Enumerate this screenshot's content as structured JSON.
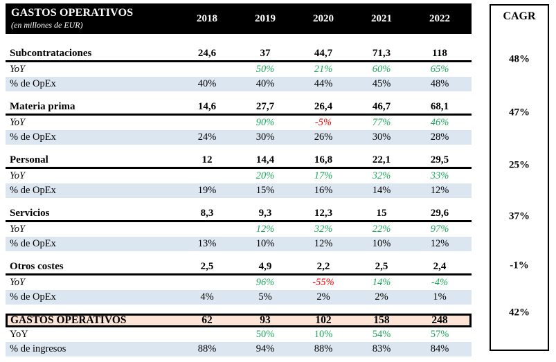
{
  "header": {
    "title": "GASTOS OPERATIVOS",
    "subtitle": "(en millones de EUR)",
    "years": [
      "2018",
      "2019",
      "2020",
      "2021",
      "2022"
    ]
  },
  "sections": [
    {
      "name": "Subcontrataciones",
      "values": [
        "24,6",
        "37",
        "44,7",
        "71,3",
        "118"
      ],
      "yoy_label": "YoY",
      "yoy": [
        "",
        "50%",
        "21%",
        "60%",
        "65%"
      ],
      "yoy_colors": [
        "",
        "green",
        "green",
        "green",
        "green"
      ],
      "opex_label": "% de OpEx",
      "opex": [
        "40%",
        "40%",
        "44%",
        "45%",
        "48%"
      ]
    },
    {
      "name": "Materia prima",
      "values": [
        "14,6",
        "27,7",
        "26,4",
        "46,7",
        "68,1"
      ],
      "yoy_label": "YoY",
      "yoy": [
        "",
        "90%",
        "-5%",
        "77%",
        "46%"
      ],
      "yoy_colors": [
        "",
        "green",
        "red",
        "green",
        "green"
      ],
      "opex_label": "% de OpEx",
      "opex": [
        "24%",
        "30%",
        "26%",
        "30%",
        "28%"
      ]
    },
    {
      "name": "Personal",
      "values": [
        "12",
        "14,4",
        "16,8",
        "22,1",
        "29,5"
      ],
      "yoy_label": "YoY",
      "yoy": [
        "",
        "20%",
        "17%",
        "32%",
        "33%"
      ],
      "yoy_colors": [
        "",
        "green",
        "green",
        "green",
        "green"
      ],
      "opex_label": "% de OpEx",
      "opex": [
        "19%",
        "15%",
        "16%",
        "14%",
        "12%"
      ]
    },
    {
      "name": "Servicios",
      "values": [
        "8,3",
        "9,3",
        "12,3",
        "15",
        "29,6"
      ],
      "yoy_label": "YoY",
      "yoy": [
        "",
        "12%",
        "32%",
        "22%",
        "97%"
      ],
      "yoy_colors": [
        "",
        "green",
        "green",
        "green",
        "green"
      ],
      "opex_label": "% de OpEx",
      "opex": [
        "13%",
        "10%",
        "12%",
        "10%",
        "12%"
      ]
    },
    {
      "name": "Otros costes",
      "values": [
        "2,5",
        "4,9",
        "2,2",
        "2,5",
        "2,4"
      ],
      "yoy_label": "YoY",
      "yoy": [
        "",
        "96%",
        "-55%",
        "14%",
        "-4%"
      ],
      "yoy_colors": [
        "",
        "green",
        "red",
        "green",
        "green"
      ],
      "opex_label": "% de OpEx",
      "opex": [
        "4%",
        "5%",
        "2%",
        "2%",
        "1%"
      ]
    }
  ],
  "total": {
    "name": "GASTOS OPERATIVOS",
    "values": [
      "62",
      "93",
      "102",
      "158",
      "248"
    ],
    "yoy_label": "YoY",
    "yoy": [
      "",
      "50%",
      "10%",
      "54%",
      "57%"
    ],
    "yoy_colors": [
      "",
      "green",
      "green",
      "green",
      "green"
    ],
    "ratio_label": "% de ingresos",
    "ratio": [
      "88%",
      "94%",
      "88%",
      "83%",
      "84%"
    ]
  },
  "cagr": {
    "label": "CAGR",
    "values": [
      "48%",
      "47%",
      "25%",
      "37%",
      "-1%",
      "42%"
    ]
  },
  "colors": {
    "header_bg": "#000000",
    "positive_green": "#1EA75C",
    "negative_red": "#FF0000",
    "band_blue": "#DCE6F1",
    "total_fill": "#FCE4D6"
  }
}
